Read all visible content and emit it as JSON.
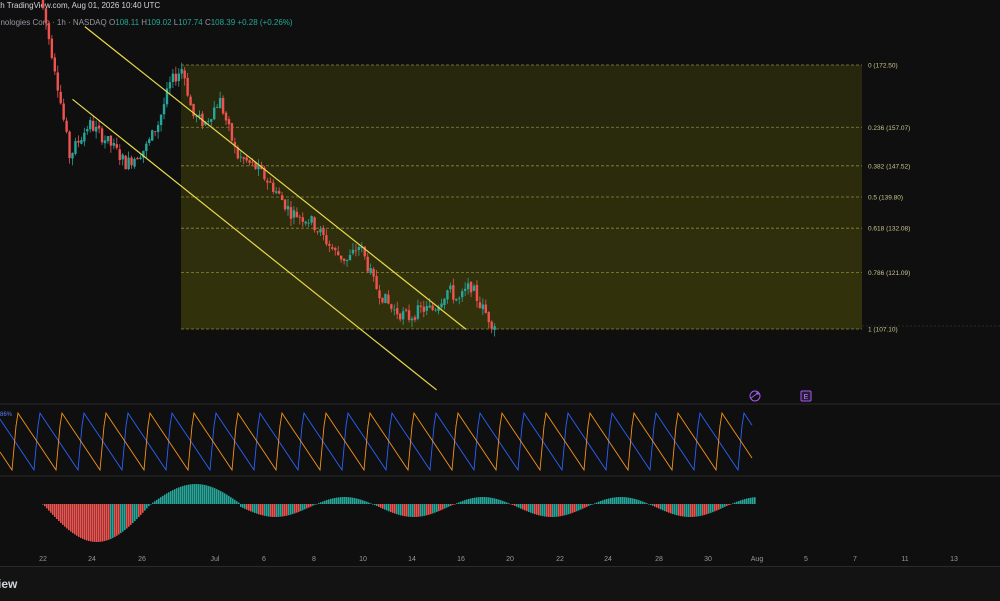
{
  "header": {
    "published": "th TradingView.com, Aug 01, 2026 10:40 UTC"
  },
  "legend": {
    "symbol": "hnologies Corp · 1h · NASDAQ",
    "open_label": "O",
    "open": "108.11",
    "high_label": "H",
    "high": "109.02",
    "low_label": "L",
    "low": "107.74",
    "close_label": "C",
    "close": "108.39",
    "change": "+0.28 (+0.26%)"
  },
  "oscillator": {
    "value_label": "86%"
  },
  "badges": {
    "event_e": "E"
  },
  "footer": {
    "brand": "iew"
  },
  "colors": {
    "up": "#26a69a",
    "down": "#ef5350",
    "fib_zone": "#4a4a10",
    "channel": "#e8d84a",
    "osc_blue": "#2962ff",
    "osc_orange": "#f7931a"
  },
  "chart_data": {
    "type": "candlestick",
    "fib_levels": [
      {
        "ratio": "0",
        "price": 172.5,
        "label": "0 (172.50)"
      },
      {
        "ratio": "0.236",
        "price": 157.07,
        "label": "0.236 (157.07)"
      },
      {
        "ratio": "0.382",
        "price": 147.52,
        "label": "0.382 (147.52)"
      },
      {
        "ratio": "0.5",
        "price": 139.8,
        "label": "0.5 (139.80)"
      },
      {
        "ratio": "0.618",
        "price": 132.08,
        "label": "0.618 (132.08)"
      },
      {
        "ratio": "0.786",
        "price": 121.09,
        "label": "0.786 (121.09)"
      },
      {
        "ratio": "1",
        "price": 107.1,
        "label": "1 (107.10)"
      }
    ],
    "x_ticks": [
      "22",
      "24",
      "26",
      "Jul",
      "6",
      "8",
      "10",
      "14",
      "16",
      "20",
      "22",
      "24",
      "28",
      "30",
      "Aug",
      "5",
      "7",
      "11",
      "13"
    ],
    "price_anchors": [
      {
        "day": 0.0,
        "price": 190
      },
      {
        "day": 0.6,
        "price": 172
      },
      {
        "day": 1.2,
        "price": 150
      },
      {
        "day": 2.0,
        "price": 158
      },
      {
        "day": 3.0,
        "price": 152
      },
      {
        "day": 3.5,
        "price": 148
      },
      {
        "day": 4.3,
        "price": 152
      },
      {
        "day": 4.8,
        "price": 158
      },
      {
        "day": 5.3,
        "price": 168
      },
      {
        "day": 5.8,
        "price": 172
      },
      {
        "day": 6.2,
        "price": 160
      },
      {
        "day": 6.7,
        "price": 158
      },
      {
        "day": 7.3,
        "price": 164
      },
      {
        "day": 8.0,
        "price": 150
      },
      {
        "day": 8.8,
        "price": 147
      },
      {
        "day": 9.5,
        "price": 142
      },
      {
        "day": 10.2,
        "price": 136
      },
      {
        "day": 11.0,
        "price": 134
      },
      {
        "day": 12.0,
        "price": 126
      },
      {
        "day": 12.5,
        "price": 124
      },
      {
        "day": 13.0,
        "price": 128
      },
      {
        "day": 13.6,
        "price": 118
      },
      {
        "day": 14.3,
        "price": 112
      },
      {
        "day": 15.0,
        "price": 110
      },
      {
        "day": 15.5,
        "price": 112
      },
      {
        "day": 16.0,
        "price": 112
      },
      {
        "day": 16.6,
        "price": 117
      },
      {
        "day": 17.0,
        "price": 114
      },
      {
        "day": 17.5,
        "price": 118
      },
      {
        "day": 17.9,
        "price": 113
      },
      {
        "day": 18.4,
        "price": 108.4
      }
    ],
    "channel_upper": [
      {
        "day": 1.7,
        "price": 182
      },
      {
        "day": 17.2,
        "price": 107
      }
    ],
    "channel_lower": [
      {
        "day": 1.2,
        "price": 164
      },
      {
        "day": 16.0,
        "price": 92
      }
    ]
  }
}
